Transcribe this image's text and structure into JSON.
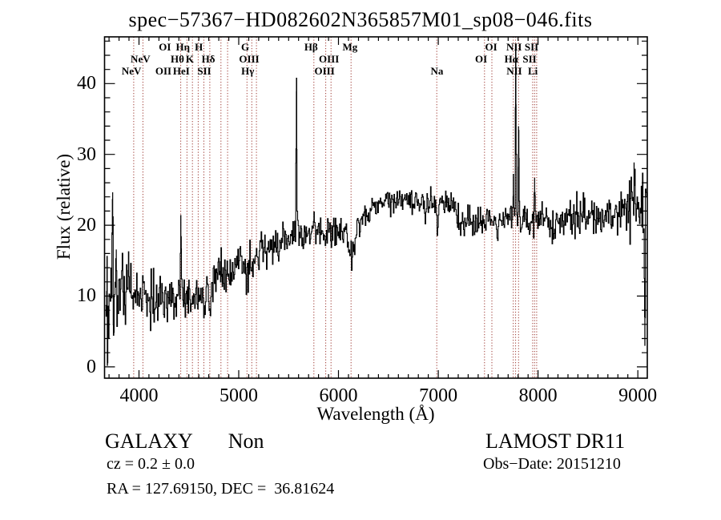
{
  "title": "spec−57367−HD082602N365857M01_sp08−046.fits",
  "footer": {
    "class_label": "GALAXY",
    "subclass_label": "Non",
    "cz_text": "cz = 0.2 ± 0.0",
    "ra_dec_text": "RA = 127.69150, DEC =  36.81624",
    "survey_text": "LAMOST DR11",
    "obs_date_text": "Obs−Date: 20151210"
  },
  "chart_data": {
    "type": "line",
    "subtype": "astronomical-spectrum",
    "title": "spec−57367−HD082602N365857M01_sp08−046.fits",
    "xlabel": "Wavelength (Å)",
    "ylabel": "Flux (relative)",
    "xlim": [
      3655,
      9095
    ],
    "ylim": [
      -1.6,
      46.6
    ],
    "x_ticks": [
      4000,
      5000,
      6000,
      7000,
      8000,
      9000
    ],
    "x_minor_step": 100,
    "y_ticks": [
      0,
      10,
      20,
      30,
      40
    ],
    "y_minor_step": 2,
    "grid": false,
    "spectrum_color": "#000000",
    "marked_line_color": "#9e3a33",
    "marked_lines": [
      {
        "name": "NeV",
        "wl": 3947
      },
      {
        "name": "NeV",
        "wl": 4040
      },
      {
        "name": "OII",
        "wl": 4419
      },
      {
        "name": "Hθ",
        "wl": 4481
      },
      {
        "name": "Hη",
        "wl": 4536
      },
      {
        "name": "HeI",
        "wl": 4594
      },
      {
        "name": "K",
        "wl": 4651
      },
      {
        "name": "H",
        "wl": 4710
      },
      {
        "name": "SII",
        "wl": 4822
      },
      {
        "name": "Hδ",
        "wl": 4888
      },
      {
        "name": "G",
        "wl": 5083
      },
      {
        "name": "Hγ",
        "wl": 5131
      },
      {
        "name": "OIII",
        "wl": 5177
      },
      {
        "name": "Hβ",
        "wl": 5753
      },
      {
        "name": "OIII",
        "wl": 5872
      },
      {
        "name": "OIII",
        "wl": 5925
      },
      {
        "name": "Mg",
        "wl": 6126
      },
      {
        "name": "Na",
        "wl": 6985
      },
      {
        "name": "OI",
        "wl": 7463
      },
      {
        "name": "OI",
        "wl": 7537
      },
      {
        "name": "NII",
        "wl": 7752
      },
      {
        "name": "Hα",
        "wl": 7775
      },
      {
        "name": "NII",
        "wl": 7805
      },
      {
        "name": "Li",
        "wl": 7946
      },
      {
        "name": "SII",
        "wl": 7965
      },
      {
        "name": "SII",
        "wl": 7986
      }
    ],
    "line_labels": [
      {
        "text": "OI",
        "row": 1,
        "wl": 4260
      },
      {
        "text": "Hη",
        "row": 1,
        "wl": 4440
      },
      {
        "text": "H",
        "row": 1,
        "wl": 4600
      },
      {
        "text": "G",
        "row": 1,
        "wl": 5065
      },
      {
        "text": "Hβ",
        "row": 1,
        "wl": 5725
      },
      {
        "text": "Mg",
        "row": 1,
        "wl": 6115
      },
      {
        "text": "OI",
        "row": 1,
        "wl": 7530
      },
      {
        "text": "NII",
        "row": 1,
        "wl": 7760
      },
      {
        "text": "SII",
        "row": 1,
        "wl": 7935
      },
      {
        "text": "NeV",
        "row": 2,
        "wl": 4015
      },
      {
        "text": "Hθ",
        "row": 2,
        "wl": 4385
      },
      {
        "text": "K",
        "row": 2,
        "wl": 4510
      },
      {
        "text": "Hδ",
        "row": 2,
        "wl": 4695
      },
      {
        "text": "OIII",
        "row": 2,
        "wl": 5105
      },
      {
        "text": "OIII",
        "row": 2,
        "wl": 5905
      },
      {
        "text": "OI",
        "row": 2,
        "wl": 7430
      },
      {
        "text": "Hα",
        "row": 2,
        "wl": 7732
      },
      {
        "text": "SII",
        "row": 2,
        "wl": 7915
      },
      {
        "text": "NeV",
        "row": 3,
        "wl": 3925
      },
      {
        "text": "OII",
        "row": 3,
        "wl": 4245
      },
      {
        "text": "HeI",
        "row": 3,
        "wl": 4425
      },
      {
        "text": "SII",
        "row": 3,
        "wl": 4655
      },
      {
        "text": "Hγ",
        "row": 3,
        "wl": 5090
      },
      {
        "text": "OIII",
        "row": 3,
        "wl": 5860
      },
      {
        "text": "Na",
        "row": 3,
        "wl": 6987
      },
      {
        "text": "NII",
        "row": 3,
        "wl": 7762
      },
      {
        "text": "Li",
        "row": 3,
        "wl": 7948
      }
    ],
    "continuum": [
      [
        3660,
        9
      ],
      [
        3700,
        10.5
      ],
      [
        3760,
        10
      ],
      [
        3850,
        10.7
      ],
      [
        3950,
        10.8
      ],
      [
        4050,
        10.2
      ],
      [
        4150,
        9.5
      ],
      [
        4250,
        9.3
      ],
      [
        4350,
        9.8
      ],
      [
        4420,
        10.8
      ],
      [
        4500,
        10.2
      ],
      [
        4560,
        10.6
      ],
      [
        4650,
        10.4
      ],
      [
        4720,
        11.3
      ],
      [
        4770,
        13.2
      ],
      [
        4830,
        13.3
      ],
      [
        4900,
        13.2
      ],
      [
        5000,
        14.2
      ],
      [
        5100,
        15.3
      ],
      [
        5200,
        16.4
      ],
      [
        5300,
        16.9
      ],
      [
        5400,
        17.4
      ],
      [
        5500,
        18.2
      ],
      [
        5600,
        18.6
      ],
      [
        5700,
        18.9
      ],
      [
        5770,
        19.2
      ],
      [
        5850,
        19.0
      ],
      [
        5950,
        19.6
      ],
      [
        6050,
        19.4
      ],
      [
        6150,
        19.2
      ],
      [
        6250,
        21.0
      ],
      [
        6350,
        22.6
      ],
      [
        6450,
        23.6
      ],
      [
        6550,
        23.2
      ],
      [
        6650,
        23.8
      ],
      [
        6750,
        23.1
      ],
      [
        6850,
        23.6
      ],
      [
        6950,
        22.8
      ],
      [
        7050,
        22.9
      ],
      [
        7150,
        22.2
      ],
      [
        7250,
        20.8
      ],
      [
        7350,
        20.5
      ],
      [
        7450,
        21.0
      ],
      [
        7550,
        20.8
      ],
      [
        7650,
        21.2
      ],
      [
        7750,
        21.0
      ],
      [
        7850,
        20.7
      ],
      [
        7950,
        20.6
      ],
      [
        8050,
        21.0
      ],
      [
        8150,
        19.8
      ],
      [
        8250,
        20.3
      ],
      [
        8350,
        21.2
      ],
      [
        8450,
        21.3
      ],
      [
        8550,
        20.9
      ],
      [
        8650,
        21.3
      ],
      [
        8750,
        21.6
      ],
      [
        8850,
        21.9
      ],
      [
        8950,
        22.1
      ],
      [
        9050,
        22.6
      ],
      [
        9090,
        23
      ]
    ],
    "noise_sigma": [
      [
        3660,
        5
      ],
      [
        3680,
        4.5
      ],
      [
        3720,
        3
      ],
      [
        3800,
        2.2
      ],
      [
        3900,
        2.2
      ],
      [
        4100,
        2
      ],
      [
        4400,
        1.8
      ],
      [
        4700,
        1.6
      ],
      [
        5000,
        1.4
      ],
      [
        5400,
        1.1
      ],
      [
        5800,
        1.1
      ],
      [
        6300,
        0.9
      ],
      [
        6800,
        0.9
      ],
      [
        7200,
        1.1
      ],
      [
        7600,
        1.0
      ],
      [
        8000,
        1.1
      ],
      [
        8300,
        1.7
      ],
      [
        8600,
        1.3
      ],
      [
        8900,
        1.8
      ],
      [
        9050,
        2.5
      ],
      [
        9088,
        3
      ]
    ],
    "features": [
      [
        3685,
        -7,
        6
      ],
      [
        3733,
        15,
        4
      ],
      [
        3747,
        -8,
        4
      ],
      [
        3770,
        5,
        3
      ],
      [
        3894,
        4,
        4
      ],
      [
        4419,
        8,
        5
      ],
      [
        4594,
        -1.6,
        10
      ],
      [
        4651,
        -2.8,
        10
      ],
      [
        4710,
        -2.2,
        10
      ],
      [
        4822,
        1.6,
        5
      ],
      [
        4888,
        -1.8,
        10
      ],
      [
        5083,
        -1.8,
        14
      ],
      [
        5131,
        -1.2,
        10
      ],
      [
        5577,
        20.5,
        4
      ],
      [
        5753,
        2.5,
        5
      ],
      [
        5872,
        -2.6,
        8
      ],
      [
        5925,
        -2.2,
        8
      ],
      [
        6126,
        -3.4,
        25
      ],
      [
        6867,
        -1.6,
        10
      ],
      [
        6985,
        -2.6,
        10
      ],
      [
        7230,
        -1.5,
        25
      ],
      [
        7463,
        -1.3,
        8
      ],
      [
        7537,
        -1.3,
        8
      ],
      [
        7594,
        -2.2,
        12
      ],
      [
        7752,
        4,
        3
      ],
      [
        7775,
        26,
        3.5
      ],
      [
        7805,
        13,
        3
      ],
      [
        7946,
        2,
        4
      ],
      [
        7965,
        4.5,
        4
      ],
      [
        8963,
        4.5,
        5
      ],
      [
        9068,
        -21,
        4
      ]
    ],
    "seed": 20151210,
    "sample_step": 6,
    "flux_clamp": [
      0.2,
      45.3
    ]
  }
}
